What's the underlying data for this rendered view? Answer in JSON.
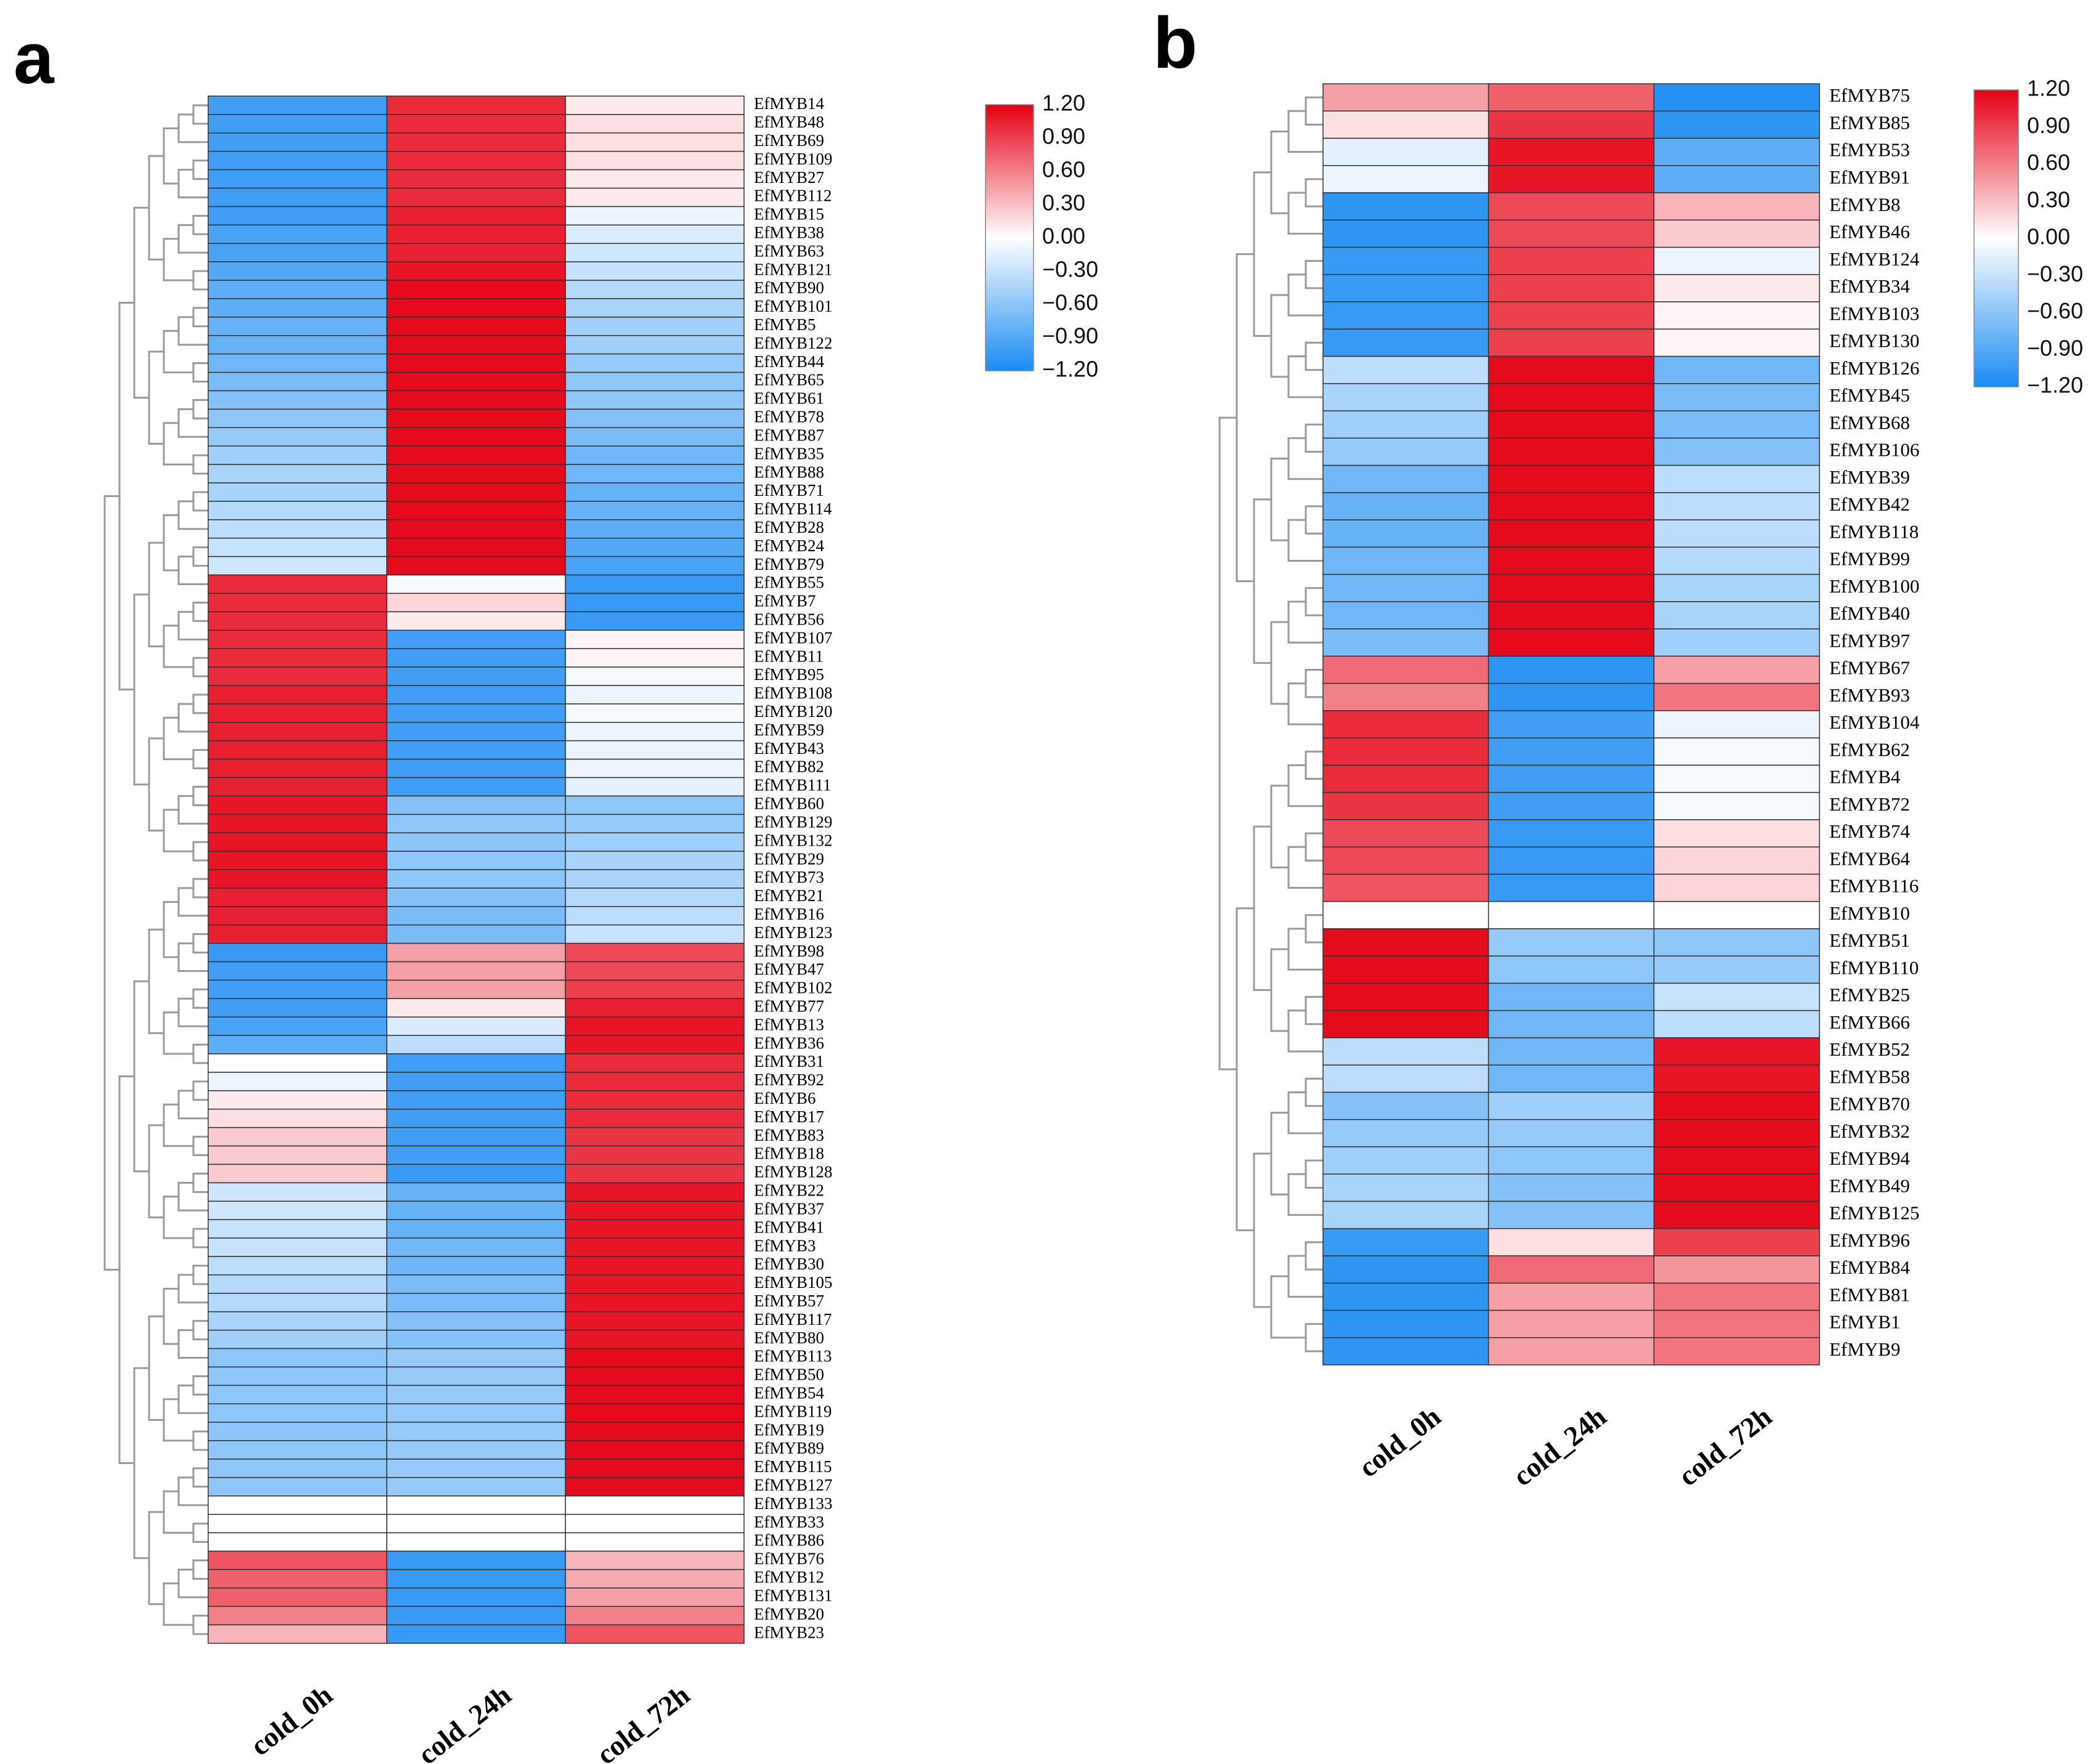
{
  "colors": {
    "low": "#1a8cf2",
    "mid": "#ffffff",
    "high": "#e50012",
    "cell_border": "#333333",
    "tree": "#9a9a9a"
  },
  "chart_data": [
    {
      "panel": "a",
      "type": "heatmap",
      "columns": [
        "cold_0h",
        "cold_24h",
        "cold_72h"
      ],
      "color_scale": {
        "min": -1.2,
        "max": 1.2,
        "ticks": [
          "1.20",
          "0.90",
          "0.60",
          "0.30",
          "0.00",
          "−0.30",
          "−0.60",
          "−0.90",
          "−1.20"
        ]
      },
      "rows": [
        "EfMYB14",
        "EfMYB48",
        "EfMYB69",
        "EfMYB109",
        "EfMYB27",
        "EfMYB112",
        "EfMYB15",
        "EfMYB38",
        "EfMYB63",
        "EfMYB121",
        "EfMYB90",
        "EfMYB101",
        "EfMYB5",
        "EfMYB122",
        "EfMYB44",
        "EfMYB65",
        "EfMYB61",
        "EfMYB78",
        "EfMYB87",
        "EfMYB35",
        "EfMYB88",
        "EfMYB71",
        "EfMYB114",
        "EfMYB28",
        "EfMYB24",
        "EfMYB79",
        "EfMYB55",
        "EfMYB7",
        "EfMYB56",
        "EfMYB107",
        "EfMYB11",
        "EfMYB95",
        "EfMYB108",
        "EfMYB120",
        "EfMYB59",
        "EfMYB43",
        "EfMYB82",
        "EfMYB111",
        "EfMYB60",
        "EfMYB129",
        "EfMYB132",
        "EfMYB29",
        "EfMYB73",
        "EfMYB21",
        "EfMYB16",
        "EfMYB123",
        "EfMYB98",
        "EfMYB47",
        "EfMYB102",
        "EfMYB77",
        "EfMYB13",
        "EfMYB36",
        "EfMYB31",
        "EfMYB92",
        "EfMYB6",
        "EfMYB17",
        "EfMYB83",
        "EfMYB18",
        "EfMYB128",
        "EfMYB22",
        "EfMYB37",
        "EfMYB41",
        "EfMYB3",
        "EfMYB30",
        "EfMYB105",
        "EfMYB57",
        "EfMYB117",
        "EfMYB80",
        "EfMYB113",
        "EfMYB50",
        "EfMYB54",
        "EfMYB119",
        "EfMYB19",
        "EfMYB89",
        "EfMYB115",
        "EfMYB127",
        "EfMYB133",
        "EfMYB33",
        "EfMYB86",
        "EfMYB76",
        "EfMYB12",
        "EfMYB131",
        "EfMYB20",
        "EfMYB23"
      ],
      "values": [
        [
          -1.0,
          1.0,
          0.1
        ],
        [
          -1.0,
          1.0,
          0.15
        ],
        [
          -1.0,
          1.0,
          0.15
        ],
        [
          -1.0,
          1.0,
          0.15
        ],
        [
          -1.0,
          1.0,
          0.1
        ],
        [
          -1.0,
          1.0,
          0.1
        ],
        [
          -1.0,
          1.05,
          -0.1
        ],
        [
          -0.95,
          1.05,
          -0.2
        ],
        [
          -0.95,
          1.05,
          -0.25
        ],
        [
          -0.9,
          1.1,
          -0.3
        ],
        [
          -0.85,
          1.15,
          -0.4
        ],
        [
          -0.85,
          1.15,
          -0.45
        ],
        [
          -0.8,
          1.15,
          -0.5
        ],
        [
          -0.8,
          1.15,
          -0.5
        ],
        [
          -0.75,
          1.15,
          -0.55
        ],
        [
          -0.7,
          1.15,
          -0.6
        ],
        [
          -0.65,
          1.15,
          -0.6
        ],
        [
          -0.6,
          1.15,
          -0.65
        ],
        [
          -0.55,
          1.15,
          -0.7
        ],
        [
          -0.5,
          1.15,
          -0.75
        ],
        [
          -0.45,
          1.15,
          -0.75
        ],
        [
          -0.45,
          1.15,
          -0.8
        ],
        [
          -0.4,
          1.15,
          -0.8
        ],
        [
          -0.35,
          1.15,
          -0.85
        ],
        [
          -0.3,
          1.15,
          -0.9
        ],
        [
          -0.25,
          1.15,
          -0.95
        ],
        [
          1.0,
          -0.05,
          -1.05
        ],
        [
          1.0,
          0.2,
          -1.05
        ],
        [
          1.0,
          0.1,
          -1.05
        ],
        [
          1.0,
          -1.0,
          0.05
        ],
        [
          1.0,
          -1.0,
          0.05
        ],
        [
          1.0,
          -1.0,
          -0.05
        ],
        [
          1.05,
          -1.0,
          -0.1
        ],
        [
          1.05,
          -1.0,
          -0.05
        ],
        [
          1.05,
          -1.0,
          -0.1
        ],
        [
          1.05,
          -1.0,
          -0.1
        ],
        [
          1.05,
          -1.0,
          -0.1
        ],
        [
          1.05,
          -1.0,
          -0.15
        ],
        [
          1.1,
          -0.65,
          -0.6
        ],
        [
          1.1,
          -0.6,
          -0.55
        ],
        [
          1.1,
          -0.6,
          -0.5
        ],
        [
          1.1,
          -0.6,
          -0.45
        ],
        [
          1.1,
          -0.6,
          -0.45
        ],
        [
          1.05,
          -0.65,
          -0.4
        ],
        [
          1.05,
          -0.7,
          -0.35
        ],
        [
          1.05,
          -0.7,
          -0.3
        ],
        [
          -1.05,
          0.45,
          0.85
        ],
        [
          -1.0,
          0.45,
          0.85
        ],
        [
          -1.0,
          0.45,
          0.9
        ],
        [
          -1.0,
          0.1,
          1.05
        ],
        [
          -0.95,
          -0.2,
          1.1
        ],
        [
          -0.85,
          -0.35,
          1.1
        ],
        [
          0.0,
          -1.0,
          1.0
        ],
        [
          -0.1,
          -1.0,
          1.0
        ],
        [
          0.1,
          -1.0,
          1.0
        ],
        [
          0.15,
          -1.0,
          1.0
        ],
        [
          0.25,
          -1.0,
          0.95
        ],
        [
          0.25,
          -1.0,
          0.95
        ],
        [
          0.25,
          -1.05,
          0.95
        ],
        [
          -0.25,
          -0.8,
          1.1
        ],
        [
          -0.25,
          -0.8,
          1.1
        ],
        [
          -0.3,
          -0.8,
          1.1
        ],
        [
          -0.3,
          -0.75,
          1.1
        ],
        [
          -0.35,
          -0.75,
          1.1
        ],
        [
          -0.4,
          -0.7,
          1.1
        ],
        [
          -0.4,
          -0.7,
          1.1
        ],
        [
          -0.45,
          -0.65,
          1.1
        ],
        [
          -0.5,
          -0.65,
          1.1
        ],
        [
          -0.6,
          -0.55,
          1.15
        ],
        [
          -0.6,
          -0.55,
          1.15
        ],
        [
          -0.6,
          -0.55,
          1.15
        ],
        [
          -0.6,
          -0.55,
          1.15
        ],
        [
          -0.6,
          -0.55,
          1.15
        ],
        [
          -0.6,
          -0.55,
          1.15
        ],
        [
          -0.6,
          -0.55,
          1.15
        ],
        [
          -0.6,
          -0.55,
          1.15
        ],
        [
          0.0,
          0.0,
          0.0
        ],
        [
          0.0,
          0.0,
          0.0
        ],
        [
          0.0,
          0.0,
          0.0
        ],
        [
          0.8,
          -1.05,
          0.35
        ],
        [
          0.75,
          -1.05,
          0.4
        ],
        [
          0.75,
          -1.05,
          0.45
        ],
        [
          0.6,
          -1.05,
          0.6
        ],
        [
          0.35,
          -1.05,
          0.8
        ]
      ]
    },
    {
      "panel": "b",
      "type": "heatmap",
      "columns": [
        "cold_0h",
        "cold_24h",
        "cold_72h"
      ],
      "color_scale": {
        "min": -1.2,
        "max": 1.2,
        "ticks": [
          "1.20",
          "0.90",
          "0.60",
          "0.30",
          "0.00",
          "−0.30",
          "−0.60",
          "−0.90",
          "−1.20"
        ]
      },
      "rows": [
        "EfMYB75",
        "EfMYB85",
        "EfMYB53",
        "EfMYB91",
        "EfMYB8",
        "EfMYB46",
        "EfMYB124",
        "EfMYB34",
        "EfMYB103",
        "EfMYB130",
        "EfMYB126",
        "EfMYB45",
        "EfMYB68",
        "EfMYB106",
        "EfMYB39",
        "EfMYB42",
        "EfMYB118",
        "EfMYB99",
        "EfMYB100",
        "EfMYB40",
        "EfMYB97",
        "EfMYB67",
        "EfMYB93",
        "EfMYB104",
        "EfMYB62",
        "EfMYB4",
        "EfMYB72",
        "EfMYB74",
        "EfMYB64",
        "EfMYB116",
        "EfMYB10",
        "EfMYB51",
        "EfMYB110",
        "EfMYB25",
        "EfMYB66",
        "EfMYB52",
        "EfMYB58",
        "EfMYB70",
        "EfMYB32",
        "EfMYB94",
        "EfMYB49",
        "EfMYB125",
        "EfMYB96",
        "EfMYB84",
        "EfMYB81",
        "EfMYB1",
        "EfMYB9"
      ],
      "values": [
        [
          0.45,
          0.75,
          -1.15
        ],
        [
          0.15,
          0.95,
          -1.1
        ],
        [
          -0.15,
          1.1,
          -0.85
        ],
        [
          -0.1,
          1.1,
          -0.85
        ],
        [
          -1.1,
          0.85,
          0.35
        ],
        [
          -1.1,
          0.85,
          0.25
        ],
        [
          -1.05,
          0.9,
          -0.1
        ],
        [
          -1.05,
          0.9,
          0.1
        ],
        [
          -1.05,
          0.9,
          0.05
        ],
        [
          -1.05,
          0.9,
          0.05
        ],
        [
          -0.35,
          1.15,
          -0.75
        ],
        [
          -0.45,
          1.15,
          -0.7
        ],
        [
          -0.5,
          1.15,
          -0.7
        ],
        [
          -0.55,
          1.15,
          -0.65
        ],
        [
          -0.75,
          1.15,
          -0.35
        ],
        [
          -0.8,
          1.15,
          -0.35
        ],
        [
          -0.8,
          1.15,
          -0.35
        ],
        [
          -0.75,
          1.15,
          -0.4
        ],
        [
          -0.75,
          1.15,
          -0.45
        ],
        [
          -0.75,
          1.15,
          -0.45
        ],
        [
          -0.7,
          1.15,
          -0.5
        ],
        [
          0.7,
          -1.1,
          0.45
        ],
        [
          0.6,
          -1.1,
          0.65
        ],
        [
          1.0,
          -1.0,
          -0.1
        ],
        [
          1.0,
          -1.0,
          -0.05
        ],
        [
          1.0,
          -1.0,
          -0.05
        ],
        [
          0.95,
          -1.0,
          -0.05
        ],
        [
          0.85,
          -1.05,
          0.15
        ],
        [
          0.85,
          -1.05,
          0.2
        ],
        [
          0.8,
          -1.05,
          0.2
        ],
        [
          0.0,
          0.0,
          0.0
        ],
        [
          1.15,
          -0.55,
          -0.6
        ],
        [
          1.15,
          -0.6,
          -0.55
        ],
        [
          1.15,
          -0.75,
          -0.3
        ],
        [
          1.15,
          -0.75,
          -0.35
        ],
        [
          -0.35,
          -0.75,
          1.1
        ],
        [
          -0.35,
          -0.75,
          1.1
        ],
        [
          -0.65,
          -0.5,
          1.15
        ],
        [
          -0.55,
          -0.55,
          1.15
        ],
        [
          -0.5,
          -0.6,
          1.15
        ],
        [
          -0.45,
          -0.65,
          1.15
        ],
        [
          -0.45,
          -0.65,
          1.15
        ],
        [
          -1.05,
          0.15,
          0.9
        ],
        [
          -1.1,
          0.7,
          0.5
        ],
        [
          -1.1,
          0.45,
          0.65
        ],
        [
          -1.1,
          0.45,
          0.65
        ],
        [
          -1.1,
          0.45,
          0.65
        ]
      ]
    }
  ]
}
